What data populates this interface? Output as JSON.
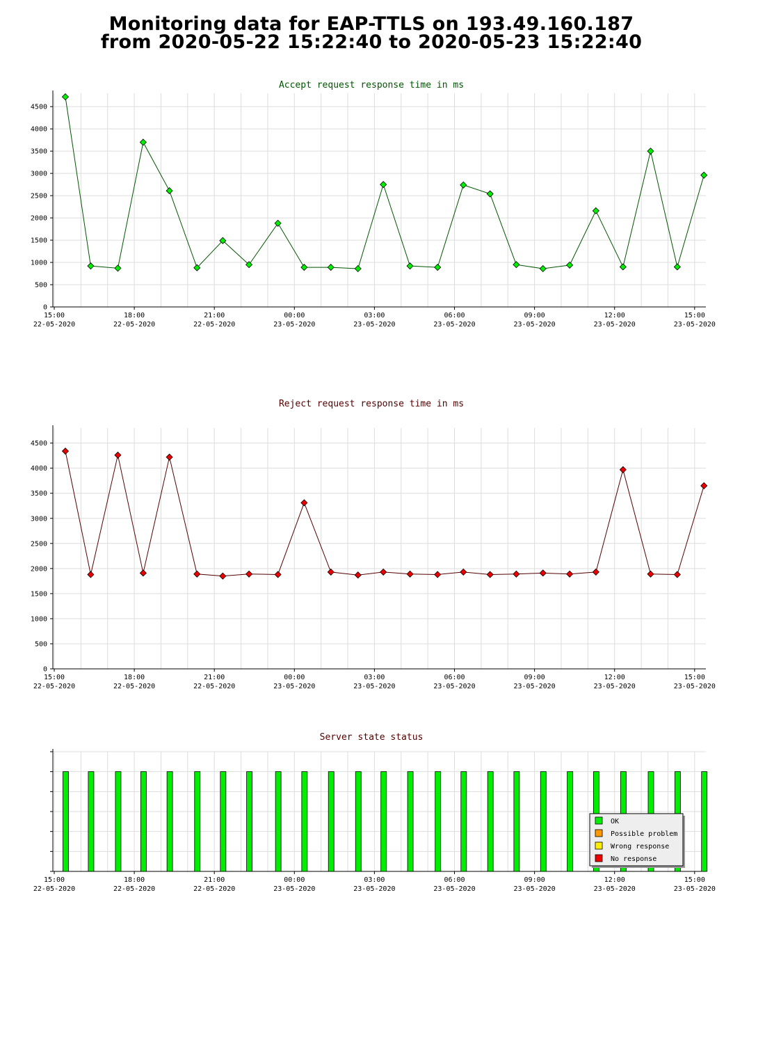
{
  "page": {
    "title_line1": "Monitoring data for EAP-TTLS on 193.49.160.187",
    "title_line2": "from 2020-05-22 15:22:40 to 2020-05-23 15:22:40"
  },
  "colors": {
    "accept_point": "#00ee00",
    "accept_line": "#005500",
    "accept_title": "#005500",
    "reject_point": "#ee0000",
    "reject_line": "#550000",
    "reject_title": "#550000",
    "status_title": "#550000",
    "ok": "#00ee00",
    "possible_problem": "#ff9900",
    "wrong_response": "#ffee00",
    "no_response": "#ee0000",
    "grid": "#dddddd"
  },
  "chart_data": [
    {
      "type": "line",
      "title": "Accept request response time in ms",
      "x_axis": {
        "ticks": [
          {
            "time": "15:00",
            "date": "22-05-2020"
          },
          {
            "time": "18:00",
            "date": "22-05-2020"
          },
          {
            "time": "21:00",
            "date": "22-05-2020"
          },
          {
            "time": "00:00",
            "date": "23-05-2020"
          },
          {
            "time": "03:00",
            "date": "23-05-2020"
          },
          {
            "time": "06:00",
            "date": "23-05-2020"
          },
          {
            "time": "09:00",
            "date": "23-05-2020"
          },
          {
            "time": "12:00",
            "date": "23-05-2020"
          },
          {
            "time": "15:00",
            "date": "23-05-2020"
          }
        ]
      },
      "y_ticks": [
        "0",
        "500",
        "1000",
        "1500",
        "2000",
        "2500",
        "3000",
        "3500",
        "4000",
        "4500"
      ],
      "ylim": [
        0,
        4800
      ],
      "x": [
        "2020-05-22 15:25",
        "2020-05-22 16:22",
        "2020-05-22 17:23",
        "2020-05-22 18:20",
        "2020-05-22 19:19",
        "2020-05-22 20:21",
        "2020-05-22 21:19",
        "2020-05-22 22:18",
        "2020-05-22 23:23",
        "2020-05-23 00:22",
        "2020-05-23 01:22",
        "2020-05-23 02:23",
        "2020-05-23 03:20",
        "2020-05-23 04:20",
        "2020-05-23 05:22",
        "2020-05-23 06:20",
        "2020-05-23 07:20",
        "2020-05-23 08:19",
        "2020-05-23 09:19",
        "2020-05-23 10:19",
        "2020-05-23 11:18",
        "2020-05-23 12:19",
        "2020-05-23 13:21",
        "2020-05-23 14:21",
        "2020-05-23 15:21"
      ],
      "series": [
        {
          "values": [
            4720,
            920,
            870,
            3700,
            2610,
            880,
            1490,
            950,
            1880,
            890,
            890,
            860,
            2750,
            920,
            890,
            2740,
            2540,
            950,
            860,
            940,
            2160,
            900,
            3500,
            900,
            2960
          ]
        }
      ]
    },
    {
      "type": "line",
      "title": "Reject request response time in ms",
      "x_axis": {
        "ticks": [
          {
            "time": "15:00",
            "date": "22-05-2020"
          },
          {
            "time": "18:00",
            "date": "22-05-2020"
          },
          {
            "time": "21:00",
            "date": "22-05-2020"
          },
          {
            "time": "00:00",
            "date": "23-05-2020"
          },
          {
            "time": "03:00",
            "date": "23-05-2020"
          },
          {
            "time": "06:00",
            "date": "23-05-2020"
          },
          {
            "time": "09:00",
            "date": "23-05-2020"
          },
          {
            "time": "12:00",
            "date": "23-05-2020"
          },
          {
            "time": "15:00",
            "date": "23-05-2020"
          }
        ]
      },
      "y_ticks": [
        "0",
        "500",
        "1000",
        "1500",
        "2000",
        "2500",
        "3000",
        "3500",
        "4000",
        "4500"
      ],
      "ylim": [
        0,
        4800
      ],
      "x": [
        "2020-05-22 15:25",
        "2020-05-22 16:22",
        "2020-05-22 17:23",
        "2020-05-22 18:20",
        "2020-05-22 19:19",
        "2020-05-22 20:21",
        "2020-05-22 21:19",
        "2020-05-22 22:18",
        "2020-05-22 23:23",
        "2020-05-23 00:22",
        "2020-05-23 01:22",
        "2020-05-23 02:23",
        "2020-05-23 03:20",
        "2020-05-23 04:20",
        "2020-05-23 05:22",
        "2020-05-23 06:20",
        "2020-05-23 07:20",
        "2020-05-23 08:19",
        "2020-05-23 09:19",
        "2020-05-23 10:19",
        "2020-05-23 11:18",
        "2020-05-23 12:19",
        "2020-05-23 13:21",
        "2020-05-23 14:21",
        "2020-05-23 15:21"
      ],
      "series": [
        {
          "values": [
            4340,
            1880,
            4260,
            1910,
            4220,
            1890,
            1850,
            1890,
            1880,
            3310,
            1930,
            1870,
            1930,
            1890,
            1880,
            1930,
            1880,
            1890,
            1910,
            1890,
            1930,
            3970,
            1890,
            1880,
            3650
          ]
        }
      ]
    },
    {
      "type": "bar",
      "title": "Server state status",
      "x_axis": {
        "ticks": [
          {
            "time": "15:00",
            "date": "22-05-2020"
          },
          {
            "time": "18:00",
            "date": "22-05-2020"
          },
          {
            "time": "21:00",
            "date": "22-05-2020"
          },
          {
            "time": "00:00",
            "date": "23-05-2020"
          },
          {
            "time": "03:00",
            "date": "23-05-2020"
          },
          {
            "time": "06:00",
            "date": "23-05-2020"
          },
          {
            "time": "09:00",
            "date": "23-05-2020"
          },
          {
            "time": "12:00",
            "date": "23-05-2020"
          },
          {
            "time": "15:00",
            "date": "23-05-2020"
          }
        ]
      },
      "x": [
        "2020-05-22 15:25",
        "2020-05-22 16:22",
        "2020-05-22 17:23",
        "2020-05-22 18:20",
        "2020-05-22 19:19",
        "2020-05-22 20:21",
        "2020-05-22 21:19",
        "2020-05-22 22:18",
        "2020-05-22 23:23",
        "2020-05-23 00:22",
        "2020-05-23 01:22",
        "2020-05-23 02:23",
        "2020-05-23 03:20",
        "2020-05-23 04:20",
        "2020-05-23 05:22",
        "2020-05-23 06:20",
        "2020-05-23 07:20",
        "2020-05-23 08:19",
        "2020-05-23 09:19",
        "2020-05-23 10:19",
        "2020-05-23 11:18",
        "2020-05-23 12:19",
        "2020-05-23 13:21",
        "2020-05-23 14:21",
        "2020-05-23 15:21"
      ],
      "states": [
        "OK",
        "OK",
        "OK",
        "OK",
        "OK",
        "OK",
        "OK",
        "OK",
        "OK",
        "OK",
        "OK",
        "OK",
        "OK",
        "OK",
        "OK",
        "OK",
        "OK",
        "OK",
        "OK",
        "OK",
        "OK",
        "OK",
        "OK",
        "OK",
        "OK"
      ],
      "legend": {
        "position": "bottom-right",
        "items": [
          "OK",
          "Possible problem",
          "Wrong response",
          "No response"
        ]
      }
    }
  ]
}
